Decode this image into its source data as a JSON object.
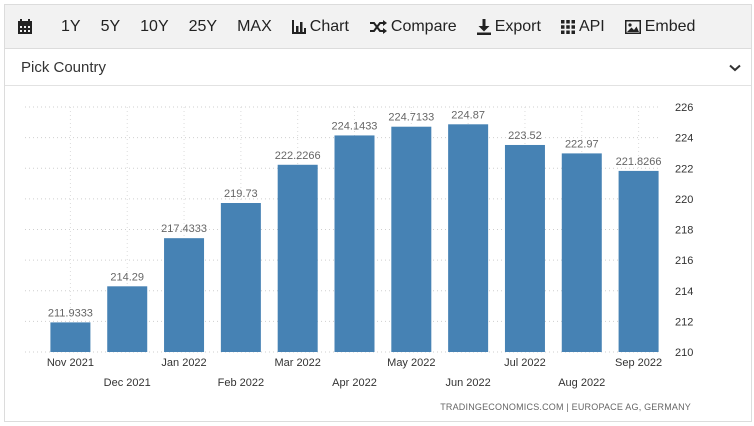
{
  "toolbar": {
    "calendar_icon": "calendar-icon",
    "ranges": [
      "1Y",
      "5Y",
      "10Y",
      "25Y",
      "MAX"
    ],
    "chart_label": "Chart",
    "compare_label": "Compare",
    "export_label": "Export",
    "api_label": "API",
    "embed_label": "Embed"
  },
  "picker": {
    "label": "Pick Country",
    "icon": "chevron-down-icon"
  },
  "chart_data": {
    "type": "bar",
    "categories": [
      "Nov 2021",
      "Dec 2021",
      "Jan 2022",
      "Feb 2022",
      "Mar 2022",
      "Apr 2022",
      "May 2022",
      "Jun 2022",
      "Jul 2022",
      "Aug 2022",
      "Sep 2022"
    ],
    "values": [
      211.9333,
      214.29,
      217.4333,
      219.73,
      222.2266,
      224.1433,
      224.7133,
      224.87,
      223.52,
      222.97,
      221.8266
    ],
    "data_labels": [
      "211.9333",
      "214.29",
      "217.4333",
      "219.73",
      "222.2266",
      "224.1433",
      "224.7133",
      "224.87",
      "223.52",
      "222.97",
      "221.8266"
    ],
    "yticks": [
      "210",
      "212",
      "214",
      "216",
      "218",
      "220",
      "222",
      "224",
      "226"
    ],
    "ylim": [
      210,
      226
    ],
    "y_axis_side": "right",
    "grid": true,
    "bar_color": "#4682b4"
  },
  "footer": {
    "source": "TRADINGECONOMICS.COM  |  EUROPACE AG, GERMANY"
  }
}
